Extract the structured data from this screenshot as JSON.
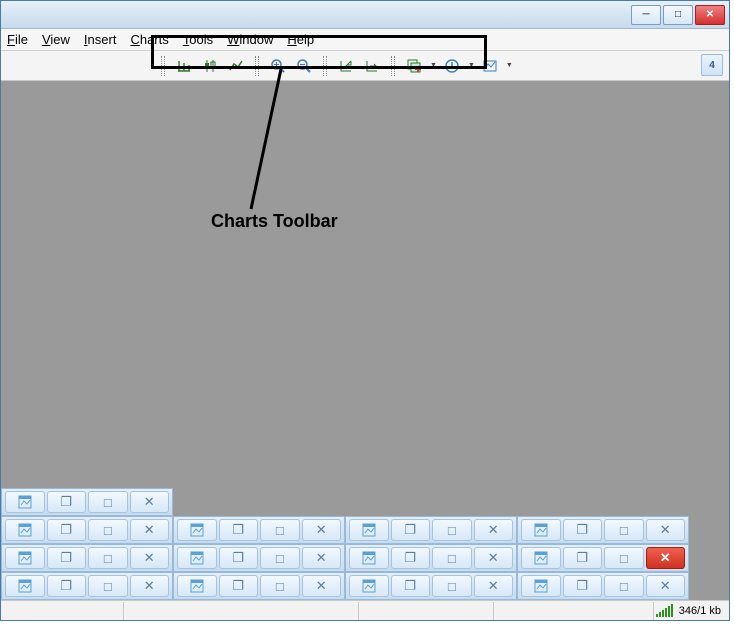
{
  "titlebar": {
    "minimize_glyph": "─",
    "maximize_glyph": "□",
    "close_glyph": "✕"
  },
  "menu": {
    "file": "File",
    "view": "View",
    "insert": "Insert",
    "charts": "Charts",
    "tools": "Tools",
    "window": "Window",
    "help": "Help"
  },
  "toolbar": {
    "nav_badge": "4",
    "icons": {
      "bar_chart": "bar-chart-icon",
      "candlestick": "candlestick-icon",
      "line_chart": "line-chart-icon",
      "zoom_in": "zoom-in-icon",
      "zoom_out": "zoom-out-icon",
      "auto_scroll": "auto-scroll-icon",
      "chart_shift": "chart-shift-icon",
      "indicators": "indicators-icon",
      "periodicity": "periodicity-icon",
      "templates": "templates-icon"
    }
  },
  "annotation": {
    "label": "Charts Toolbar",
    "box_color": "#000000",
    "line_color": "#000000"
  },
  "minimized_windows": {
    "rows": [
      [
        {
          "close_red": false
        }
      ],
      [
        {
          "close_red": false
        },
        {
          "close_red": false
        },
        {
          "close_red": false
        },
        {
          "close_red": false
        }
      ],
      [
        {
          "close_red": false
        },
        {
          "close_red": false
        },
        {
          "close_red": false
        },
        {
          "close_red": true
        }
      ],
      [
        {
          "close_red": false
        },
        {
          "close_red": false
        },
        {
          "close_red": false
        },
        {
          "close_red": false
        }
      ]
    ],
    "glyphs": {
      "icon": "⊞",
      "restore": "❐",
      "maximize": "□",
      "close": "✕"
    }
  },
  "statusbar": {
    "connection_text": "346/1 kb",
    "signal_bars": [
      3,
      5,
      7,
      9,
      11,
      13
    ],
    "signal_color": "#2a9020"
  },
  "colors": {
    "workspace_bg": "#9a9a9a",
    "titlebar_gradient_top": "#e8f0f8",
    "titlebar_gradient_bottom": "#c8dbed",
    "close_btn_bg": "#d63030"
  }
}
